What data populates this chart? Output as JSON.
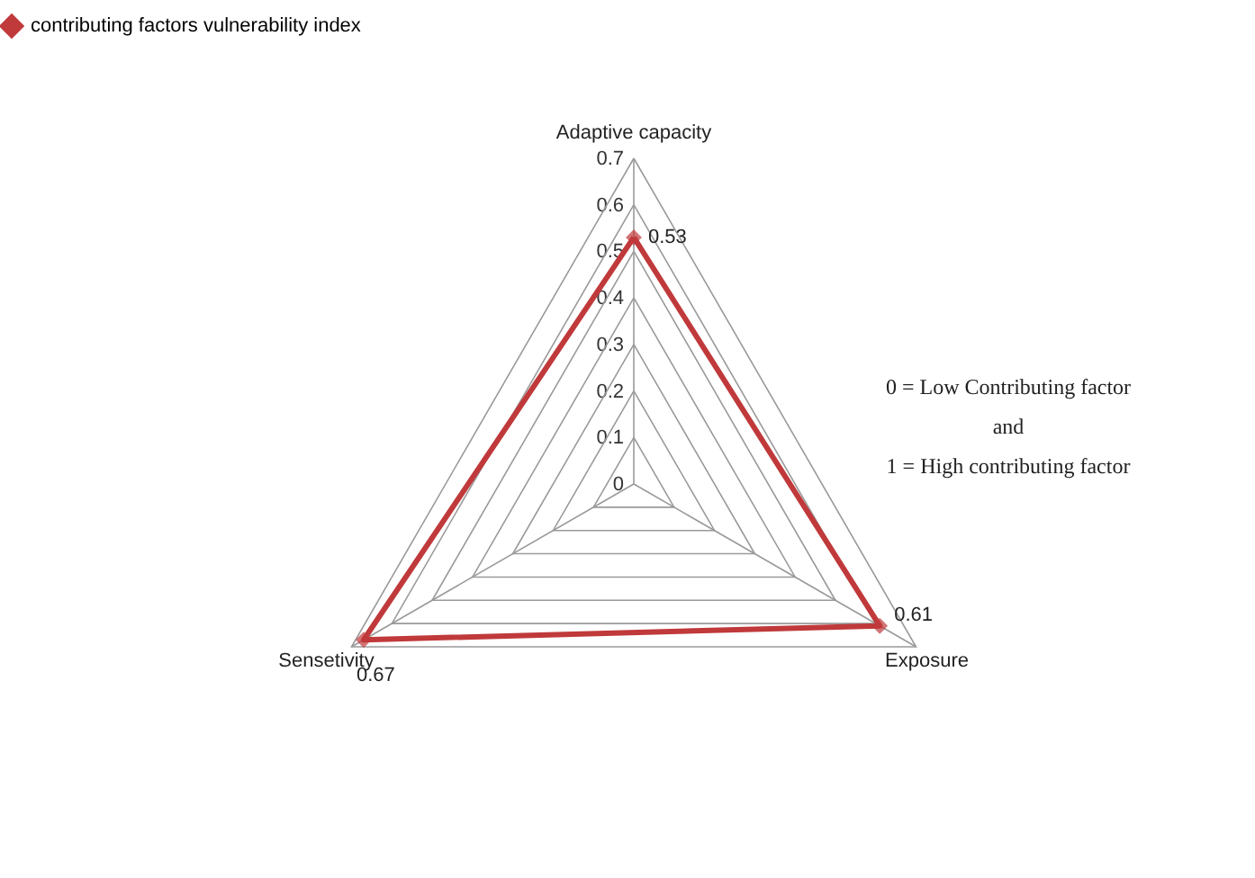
{
  "chart_data": {
    "type": "radar",
    "categories": [
      "Adaptive capacity",
      "Exposure",
      "Sensetivity"
    ],
    "series": [
      {
        "name": "contributing factors vulnerability index",
        "color": "#c0393b",
        "values": [
          0.53,
          0.61,
          0.67
        ]
      }
    ],
    "ylim": [
      0,
      0.7
    ],
    "yticks": [
      0,
      0.1,
      0.2,
      0.3,
      0.4,
      0.5,
      0.6,
      0.7
    ],
    "grid": true,
    "legend": "top",
    "marker": "diamond",
    "data_labels": true,
    "annotations": [
      "0 = Low  Contributing factor",
      "and",
      "1 = High contributing factor"
    ]
  }
}
